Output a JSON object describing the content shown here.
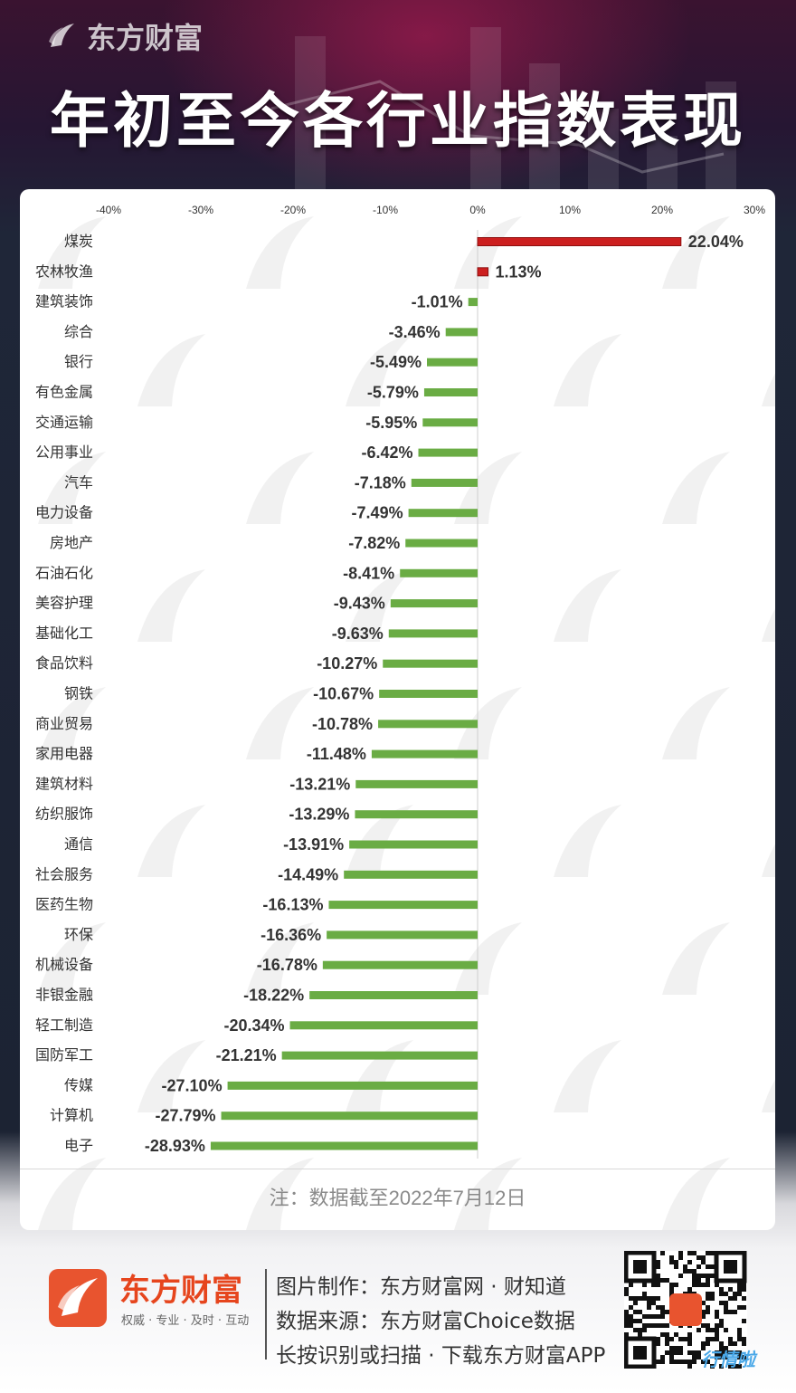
{
  "header": {
    "brand": "东方财富",
    "title": "年初至今各行业指数表现"
  },
  "chart_data": {
    "type": "bar",
    "orientation": "horizontal",
    "title": "年初至今各行业指数表现",
    "unit": "%",
    "xlim": [
      -40,
      30
    ],
    "xticks": [
      -40,
      -30,
      -20,
      -10,
      0,
      10,
      20,
      30
    ],
    "xtick_labels": [
      "-40%",
      "-30%",
      "-20%",
      "-10%",
      "0%",
      "10%",
      "20%",
      "30%"
    ],
    "xtick_position": "top",
    "grid": false,
    "colors": {
      "positive": "#cc1f1f",
      "negative": "#6aac44"
    },
    "categories": [
      "煤炭",
      "农林牧渔",
      "建筑装饰",
      "综合",
      "银行",
      "有色金属",
      "交通运输",
      "公用事业",
      "汽车",
      "电力设备",
      "房地产",
      "石油石化",
      "美容护理",
      "基础化工",
      "食品饮料",
      "钢铁",
      "商业贸易",
      "家用电器",
      "建筑材料",
      "纺织服饰",
      "通信",
      "社会服务",
      "医药生物",
      "环保",
      "机械设备",
      "非银金融",
      "轻工制造",
      "国防军工",
      "传媒",
      "计算机",
      "电子"
    ],
    "values": [
      22.04,
      1.13,
      -1.01,
      -3.46,
      -5.49,
      -5.79,
      -5.95,
      -6.42,
      -7.18,
      -7.49,
      -7.82,
      -8.41,
      -9.43,
      -9.63,
      -10.27,
      -10.67,
      -10.78,
      -11.48,
      -13.21,
      -13.29,
      -13.91,
      -14.49,
      -16.13,
      -16.36,
      -16.78,
      -18.22,
      -20.34,
      -21.21,
      -27.1,
      -27.79,
      -28.93
    ],
    "value_labels": [
      "22.04%",
      "1.13%",
      "-1.01%",
      "-3.46%",
      "-5.49%",
      "-5.79%",
      "-5.95%",
      "-6.42%",
      "-7.18%",
      "-7.49%",
      "-7.82%",
      "-8.41%",
      "-9.43%",
      "-9.63%",
      "-10.27%",
      "-10.67%",
      "-10.78%",
      "-11.48%",
      "-13.21%",
      "-13.29%",
      "-13.91%",
      "-14.49%",
      "-16.13%",
      "-16.36%",
      "-16.78%",
      "-18.22%",
      "-20.34%",
      "-21.21%",
      "-27.10%",
      "-27.79%",
      "-28.93%"
    ]
  },
  "note": "注：数据截至2022年7月12日",
  "footer": {
    "brand": "东方财富",
    "slogan": "权威 · 专业 · 及时 · 互动",
    "line1": "图片制作：东方财富网 · 财知道",
    "line2": "数据来源：东方财富Choice数据",
    "line3": "长按识别或扫描 · 下载东方财富APP",
    "badge": "行情啦"
  }
}
